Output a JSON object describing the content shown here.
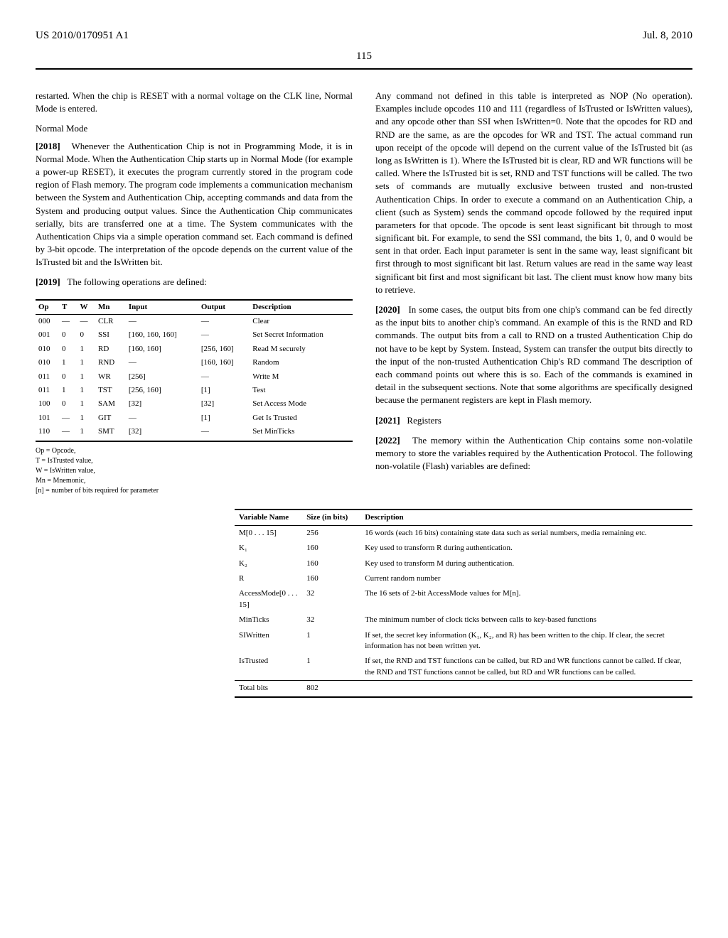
{
  "header": {
    "pub_number": "US 2010/0170951 A1",
    "pub_date": "Jul. 8, 2010",
    "page_number": "115"
  },
  "left": {
    "intro_tail": "restarted. When the chip is RESET with a normal voltage on the CLK line, Normal Mode is entered.",
    "normal_mode_heading": "Normal Mode",
    "p2018_num": "[2018]",
    "p2018": "Whenever the Authentication Chip is not in Programming Mode, it is in Normal Mode. When the Authentication Chip starts up in Normal Mode (for example a power-up RESET), it executes the program currently stored in the program code region of Flash memory. The program code implements a communication mechanism between the System and Authentication Chip, accepting commands and data from the System and producing output values. Since the Authentication Chip communicates serially, bits are transferred one at a time. The System communicates with the Authentication Chips via a simple operation command set. Each command is defined by 3-bit opcode. The interpretation of the opcode depends on the current value of the IsTrusted bit and the IsWritten bit.",
    "p2019_num": "[2019]",
    "p2019": "The following operations are defined:",
    "op_table": {
      "headers": [
        "Op",
        "T",
        "W",
        "Mn",
        "Input",
        "Output",
        "Description"
      ],
      "rows": [
        [
          "000",
          "—",
          "—",
          "CLR",
          "—",
          "—",
          "Clear"
        ],
        [
          "001",
          "0",
          "0",
          "SSI",
          "[160, 160, 160]",
          "—",
          "Set Secret Information"
        ],
        [
          "010",
          "0",
          "1",
          "RD",
          "[160, 160]",
          "[256, 160]",
          "Read M securely"
        ],
        [
          "010",
          "1",
          "1",
          "RND",
          "—",
          "[160, 160]",
          "Random"
        ],
        [
          "011",
          "0",
          "1",
          "WR",
          "[256]",
          "—",
          "Write M"
        ],
        [
          "011",
          "1",
          "1",
          "TST",
          "[256, 160]",
          "[1]",
          "Test"
        ],
        [
          "100",
          "0",
          "1",
          "SAM",
          "[32]",
          "[32]",
          "Set Access Mode"
        ],
        [
          "101",
          "—",
          "1",
          "GIT",
          "—",
          "[1]",
          "Get Is Trusted"
        ],
        [
          "110",
          "—",
          "1",
          "SMT",
          "[32]",
          "—",
          "Set MinTicks"
        ]
      ],
      "notes": [
        "Op = Opcode,",
        "T = IsTrusted value,",
        "W = IsWritten value,",
        "Mn = Mnemonic,",
        "[n] = number of bits required for parameter"
      ]
    }
  },
  "right": {
    "p_cont": "Any command not defined in this table is interpreted as NOP (No operation). Examples include opcodes 110 and 111 (regardless of IsTrusted or IsWritten values), and any opcode other than SSI when IsWritten=0. Note that the opcodes for RD and RND are the same, as are the opcodes for WR and TST. The actual command run upon receipt of the opcode will depend on the current value of the IsTrusted bit (as long as IsWritten is 1). Where the IsTrusted bit is clear, RD and WR functions will be called. Where the IsTrusted bit is set, RND and TST functions will be called. The two sets of commands are mutually exclusive between trusted and non-trusted Authentication Chips. In order to execute a command on an Authentication Chip, a client (such as System) sends the command opcode followed by the required input parameters for that opcode. The opcode is sent least significant bit through to most significant bit. For example, to send the SSI command, the bits 1, 0, and 0 would be sent in that order. Each input parameter is sent in the same way, least significant bit first through to most significant bit last. Return values are read in the same way least significant bit first and most significant bit last. The client must know how many bits to retrieve.",
    "p2020_num": "[2020]",
    "p2020": "In some cases, the output bits from one chip's command can be fed directly as the input bits to another chip's command. An example of this is the RND and RD commands. The output bits from a call to RND on a trusted Authentication Chip do not have to be kept by System. Instead, System can transfer the output bits directly to the input of the non-trusted Authentication Chip's RD command The description of each command points out where this is so. Each of the commands is examined in detail in the subsequent sections. Note that some algorithms are specifically designed because the permanent registers are kept in Flash memory.",
    "p2021_num": "[2021]",
    "p2021": "Registers",
    "p2022_num": "[2022]",
    "p2022": "The memory within the Authentication Chip contains some non-volatile memory to store the variables required by the Authentication Protocol. The following non-volatile (Flash) variables are defined:"
  },
  "var_table": {
    "headers": [
      "Variable Name",
      "Size (in bits)",
      "Description"
    ],
    "rows": [
      [
        "M[0 . . . 15]",
        "256",
        "16 words (each 16 bits) containing state data such as serial numbers, media remaining etc."
      ],
      [
        "K₁",
        "160",
        "Key used to transform R during authentication."
      ],
      [
        "K₂",
        "160",
        "Key used to transform M during authentication."
      ],
      [
        "R",
        "160",
        "Current random number"
      ],
      [
        "AccessMode[0 . . . 15]",
        "32",
        "The 16 sets of 2-bit AccessMode values for M[n]."
      ],
      [
        "MinTicks",
        "32",
        "The minimum number of clock ticks between calls to key-based functions"
      ],
      [
        "SIWritten",
        "1",
        "If set, the secret key information (K₁, K₂, and R) has been written to the chip. If clear, the secret information has not been written yet."
      ],
      [
        "IsTrusted",
        "1",
        "If set, the RND and TST functions can be called, but RD and WR functions cannot be called. If clear, the RND and TST functions cannot be called, but RD and WR functions can be called."
      ]
    ],
    "total_label": "Total bits",
    "total_value": "802"
  }
}
